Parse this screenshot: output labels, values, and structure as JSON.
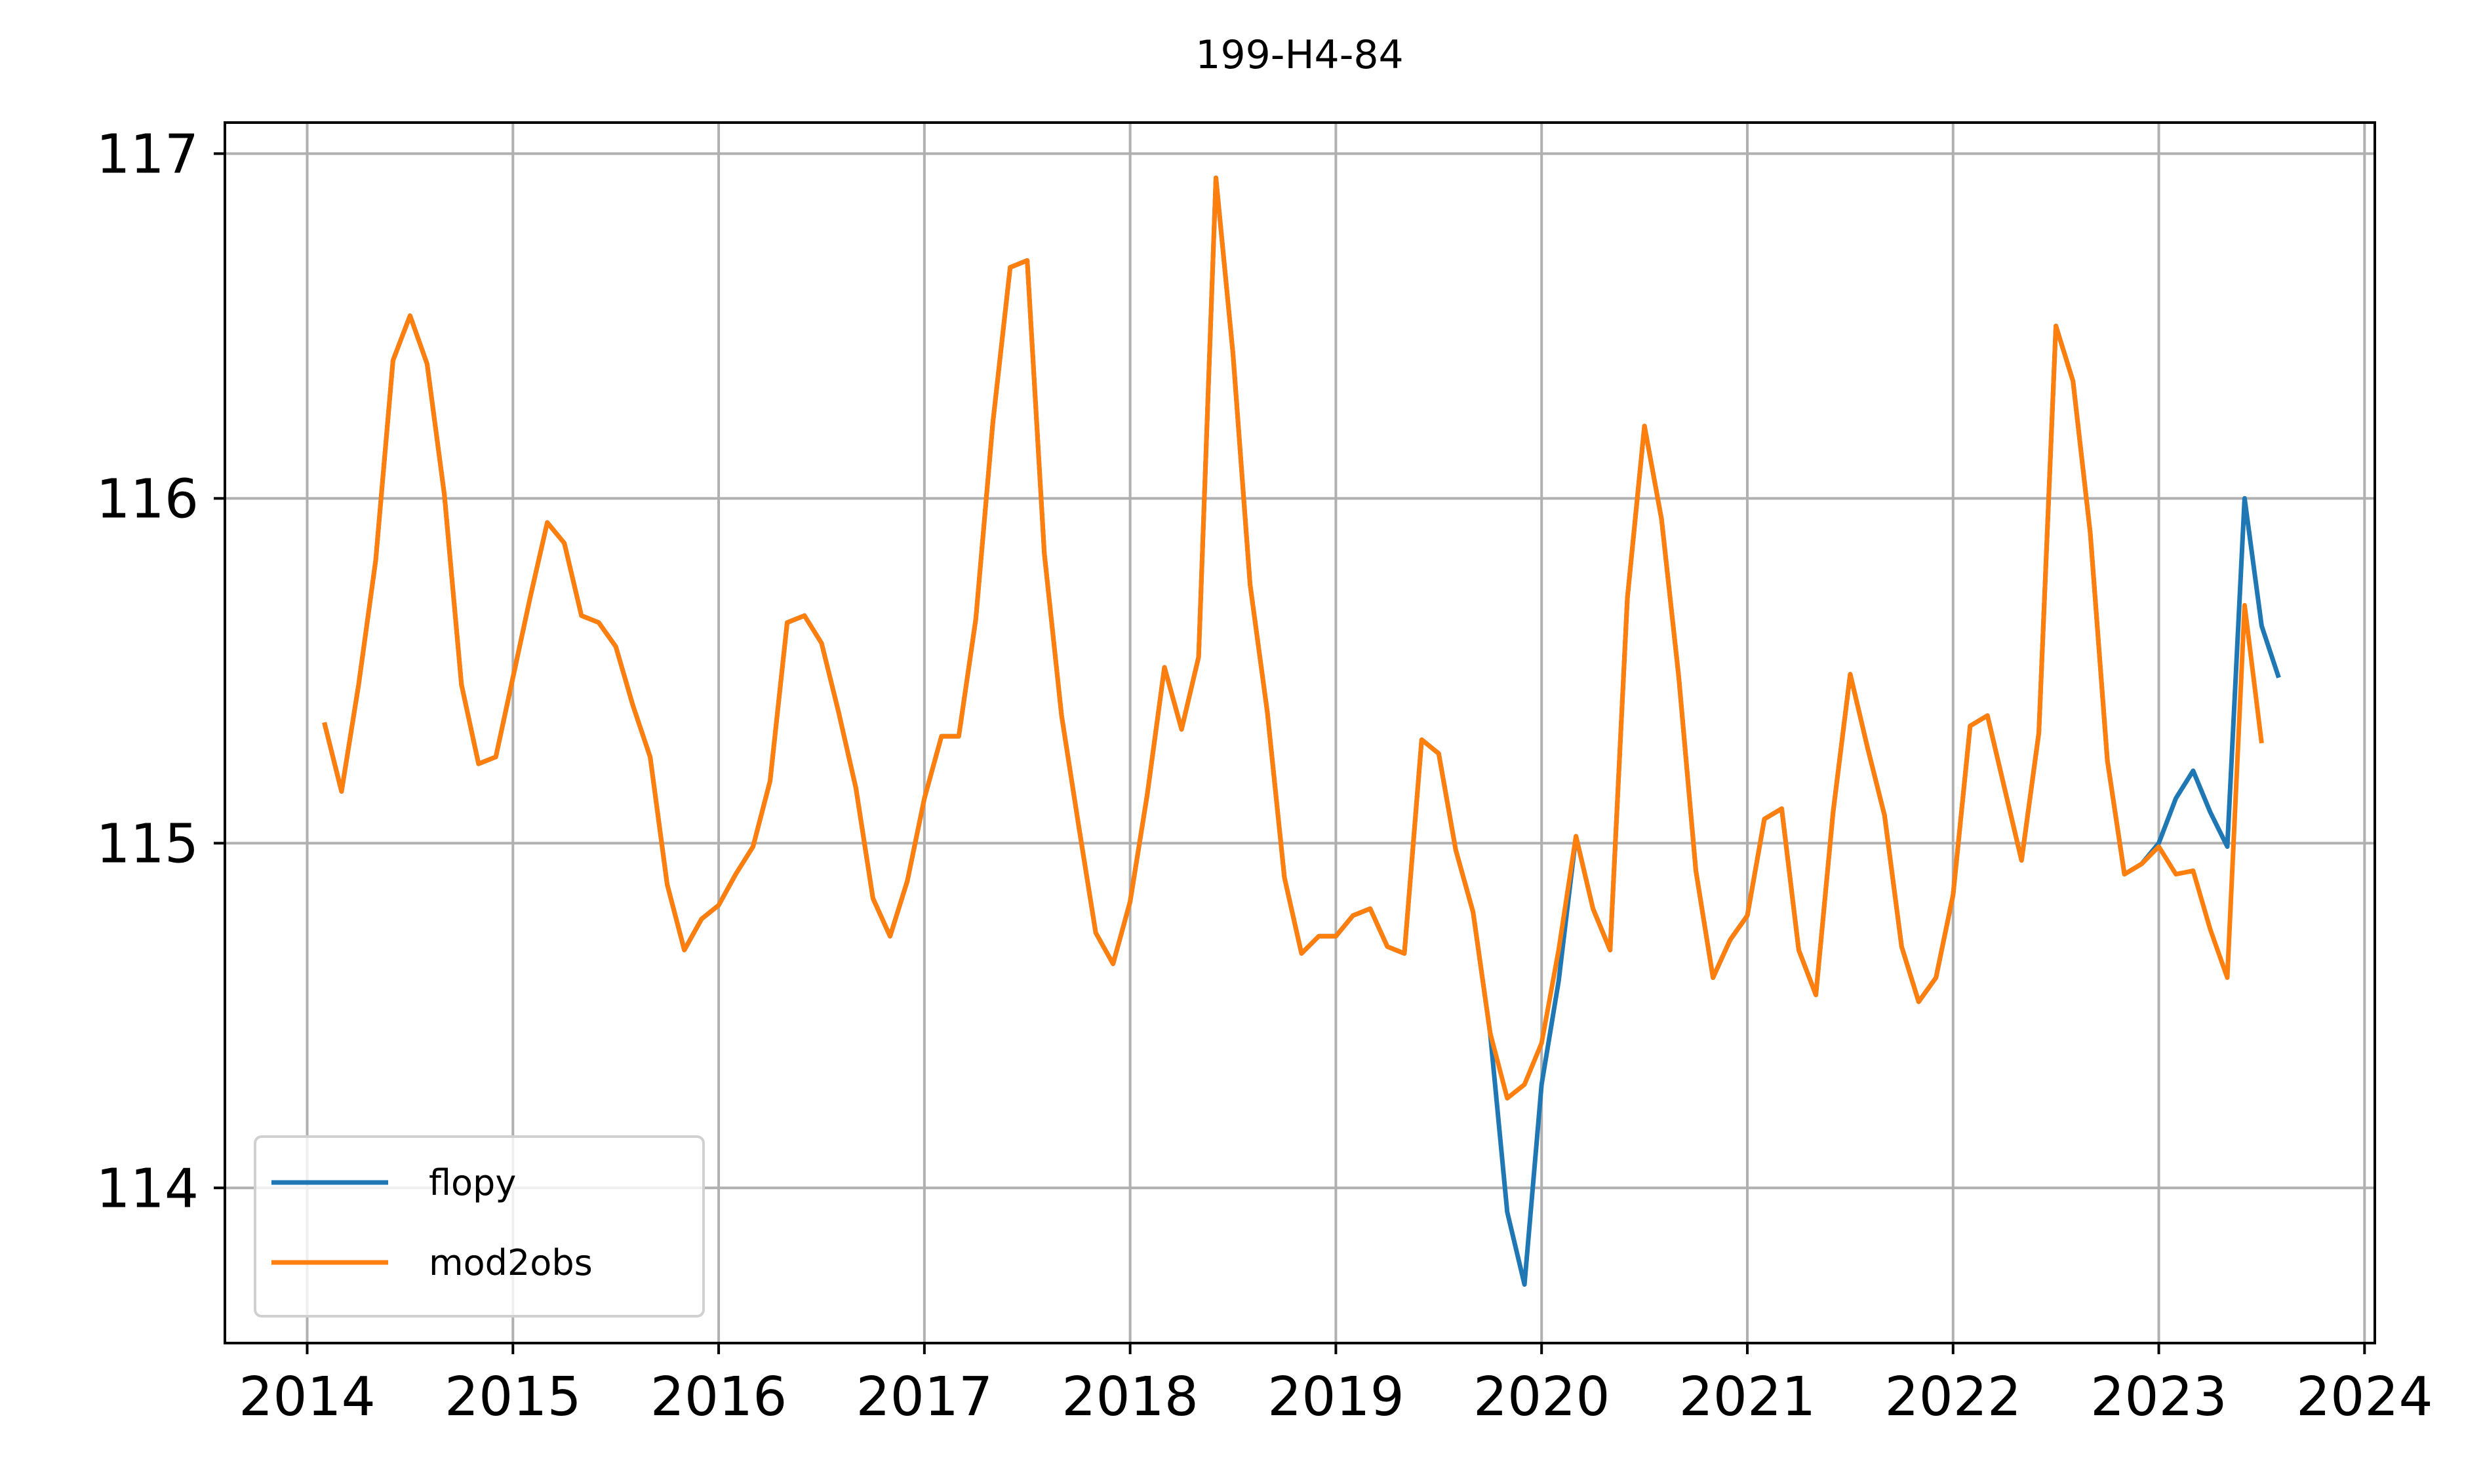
{
  "chart_data": {
    "type": "line",
    "title": "199-H4-84",
    "x": [
      2014.083,
      2014.167,
      2014.25,
      2014.333,
      2014.417,
      2014.5,
      2014.583,
      2014.667,
      2014.75,
      2014.833,
      2014.917,
      2015,
      2015.083,
      2015.167,
      2015.25,
      2015.333,
      2015.417,
      2015.5,
      2015.583,
      2015.667,
      2015.75,
      2015.833,
      2015.917,
      2016,
      2016.083,
      2016.167,
      2016.25,
      2016.333,
      2016.417,
      2016.5,
      2016.583,
      2016.667,
      2016.75,
      2016.833,
      2016.917,
      2017,
      2017.083,
      2017.167,
      2017.25,
      2017.333,
      2017.417,
      2017.5,
      2017.583,
      2017.667,
      2017.75,
      2017.833,
      2017.917,
      2018,
      2018.083,
      2018.167,
      2018.25,
      2018.333,
      2018.417,
      2018.5,
      2018.583,
      2018.667,
      2018.75,
      2018.833,
      2018.917,
      2019,
      2019.083,
      2019.167,
      2019.25,
      2019.333,
      2019.417,
      2019.5,
      2019.583,
      2019.667,
      2019.75,
      2019.833,
      2019.917,
      2020,
      2020.083,
      2020.167,
      2020.25,
      2020.333,
      2020.417,
      2020.5,
      2020.583,
      2020.667,
      2020.75,
      2020.833,
      2020.917,
      2021,
      2021.083,
      2021.167,
      2021.25,
      2021.333,
      2021.417,
      2021.5,
      2021.583,
      2021.667,
      2021.75,
      2021.833,
      2021.917,
      2022,
      2022.083,
      2022.167,
      2022.25,
      2022.333,
      2022.417,
      2022.5,
      2022.583,
      2022.667,
      2022.75,
      2022.833,
      2022.917,
      2023,
      2023.083,
      2023.167,
      2023.25,
      2023.333,
      2023.417,
      2023.5,
      2023.583
    ],
    "series": [
      {
        "name": "flopy",
        "color": "#1f77b4",
        "values": [
          115.35,
          115.15,
          115.46,
          115.82,
          116.4,
          116.53,
          116.39,
          116.01,
          115.46,
          115.23,
          115.25,
          115.48,
          115.71,
          115.93,
          115.87,
          115.66,
          115.64,
          115.57,
          115.4,
          115.25,
          114.88,
          114.69,
          114.78,
          114.82,
          114.91,
          114.99,
          115.18,
          115.64,
          115.66,
          115.58,
          115.38,
          115.16,
          114.84,
          114.73,
          114.89,
          115.13,
          115.31,
          115.31,
          115.65,
          116.22,
          116.67,
          116.69,
          115.84,
          115.37,
          115.05,
          114.74,
          114.65,
          114.83,
          115.14,
          115.51,
          115.33,
          115.54,
          116.93,
          116.42,
          115.75,
          115.38,
          114.9,
          114.68,
          114.73,
          114.73,
          114.79,
          114.81,
          114.7,
          114.68,
          115.3,
          115.26,
          114.98,
          114.8,
          114.45,
          113.93,
          113.72,
          114.3,
          114.6,
          115.02,
          114.81,
          114.69,
          115.71,
          116.21,
          115.94,
          115.48,
          114.92,
          114.61,
          114.72,
          114.79,
          115.07,
          115.1,
          114.69,
          114.56,
          115.09,
          115.49,
          115.28,
          115.08,
          114.7,
          114.54,
          114.61,
          114.85,
          115.34,
          115.37,
          115.16,
          114.95,
          115.32,
          116.5,
          116.34,
          115.9,
          115.24,
          114.91,
          114.94,
          115.0,
          115.13,
          115.21,
          115.09,
          114.99,
          116.0,
          115.63,
          115.48
        ]
      },
      {
        "name": "mod2obs",
        "color": "#ff7f0e",
        "values": [
          115.35,
          115.15,
          115.46,
          115.82,
          116.4,
          116.53,
          116.39,
          116.01,
          115.46,
          115.23,
          115.25,
          115.48,
          115.71,
          115.93,
          115.87,
          115.66,
          115.64,
          115.57,
          115.4,
          115.25,
          114.88,
          114.69,
          114.78,
          114.82,
          114.91,
          114.99,
          115.18,
          115.64,
          115.66,
          115.58,
          115.38,
          115.16,
          114.84,
          114.73,
          114.89,
          115.13,
          115.31,
          115.31,
          115.65,
          116.22,
          116.67,
          116.69,
          115.84,
          115.37,
          115.05,
          114.74,
          114.65,
          114.83,
          115.14,
          115.51,
          115.33,
          115.54,
          116.93,
          116.42,
          115.75,
          115.38,
          114.9,
          114.68,
          114.73,
          114.73,
          114.79,
          114.81,
          114.7,
          114.68,
          115.3,
          115.26,
          114.98,
          114.8,
          114.45,
          114.26,
          114.3,
          114.42,
          114.69,
          115.02,
          114.81,
          114.69,
          115.71,
          116.21,
          115.94,
          115.48,
          114.92,
          114.61,
          114.72,
          114.79,
          115.07,
          115.1,
          114.69,
          114.56,
          115.09,
          115.49,
          115.28,
          115.08,
          114.7,
          114.54,
          114.61,
          114.85,
          115.34,
          115.37,
          115.16,
          114.95,
          115.32,
          116.5,
          116.34,
          115.9,
          115.24,
          114.91,
          114.94,
          114.99,
          114.91,
          114.92,
          114.75,
          114.61,
          115.69,
          115.29,
          null
        ]
      }
    ],
    "xlim": [
      2013.6,
      2024.05
    ],
    "xticks": [
      2014,
      2015,
      2016,
      2017,
      2018,
      2019,
      2020,
      2021,
      2022,
      2023,
      2024
    ],
    "ylim": [
      113.55,
      117.09
    ],
    "yticks": [
      114,
      115,
      116,
      117
    ],
    "grid": true,
    "legend": "lower left"
  }
}
